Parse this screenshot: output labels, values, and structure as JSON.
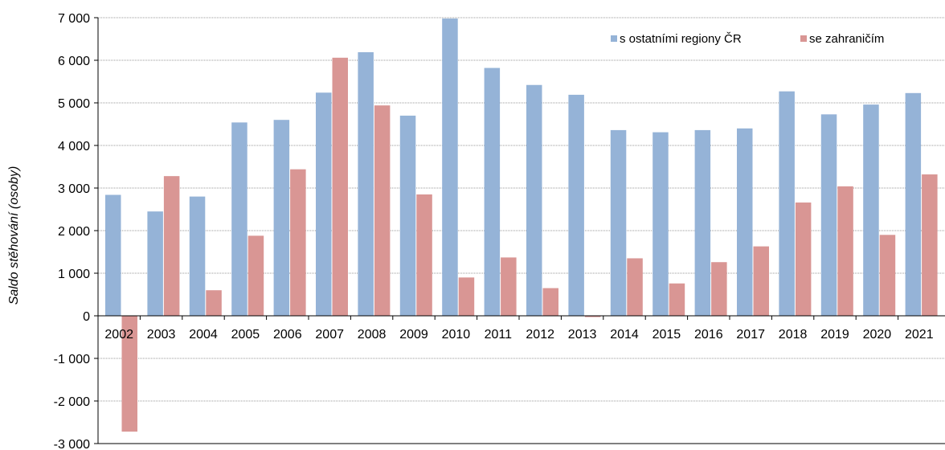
{
  "chart_data": {
    "type": "bar",
    "ylabel": "Saldo stěhování (osoby)",
    "ylim": [
      -3000,
      7000
    ],
    "yticks": [
      7000,
      6000,
      5000,
      4000,
      3000,
      2000,
      1000,
      0,
      -1000,
      -2000,
      -3000
    ],
    "ytick_labels": [
      "7 000",
      "6 000",
      "5 000",
      "4 000",
      "3 000",
      "2 000",
      "1 000",
      "0",
      "-1 000",
      "-2 000",
      "-3 000"
    ],
    "grid": true,
    "legend_position": "top-right",
    "categories": [
      "2002",
      "2003",
      "2004",
      "2005",
      "2006",
      "2007",
      "2008",
      "2009",
      "2010",
      "2011",
      "2012",
      "2013",
      "2014",
      "2015",
      "2016",
      "2017",
      "2018",
      "2019",
      "2020",
      "2021"
    ],
    "series": [
      {
        "name": "s ostatními regiony ČR",
        "color": "#95b3d7",
        "values": [
          2840,
          2450,
          2800,
          4540,
          4600,
          5240,
          6190,
          4700,
          6980,
          5820,
          5420,
          5190,
          4360,
          4310,
          4360,
          4400,
          5270,
          4730,
          4960,
          5230
        ]
      },
      {
        "name": "se zahraničím",
        "color": "#d99694",
        "values": [
          -2720,
          3280,
          600,
          1880,
          3440,
          6060,
          4940,
          2850,
          900,
          1370,
          650,
          -30,
          1350,
          760,
          1260,
          1630,
          2660,
          3040,
          1900,
          3320
        ]
      }
    ]
  }
}
